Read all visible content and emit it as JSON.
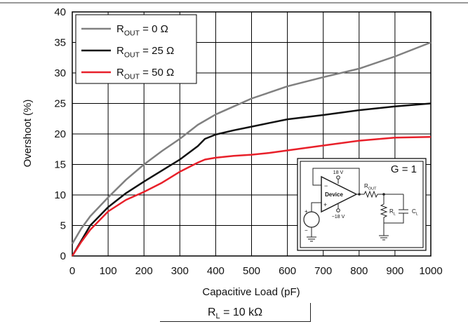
{
  "chart_data": {
    "type": "line",
    "xlabel": "Capacitive Load (pF)",
    "ylabel": "Overshoot (%)",
    "xlim": [
      0,
      1000
    ],
    "ylim": [
      0,
      40
    ],
    "x_ticks": [
      0,
      100,
      200,
      300,
      400,
      500,
      600,
      700,
      800,
      900,
      1000
    ],
    "y_ticks": [
      0,
      5,
      10,
      15,
      20,
      25,
      30,
      35,
      40
    ],
    "grid": true,
    "legend_position": "top-left",
    "series": [
      {
        "name_main": "R",
        "name_sub": "OUT",
        "name_rest": " = 0 Ω",
        "color": "#808080",
        "x": [
          0,
          25,
          50,
          100,
          150,
          200,
          250,
          300,
          350,
          400,
          450,
          500,
          550,
          600,
          700,
          800,
          900,
          1000
        ],
        "y": [
          2,
          4.5,
          6.5,
          9.6,
          12.5,
          15,
          17.2,
          19.2,
          21.5,
          23.2,
          24.5,
          25.8,
          26.8,
          27.8,
          29.3,
          30.7,
          32.7,
          35
        ]
      },
      {
        "name_main": "R",
        "name_sub": "OUT",
        "name_rest": " = 25 Ω",
        "color": "#111111",
        "x": [
          0,
          25,
          50,
          100,
          150,
          200,
          250,
          300,
          350,
          370,
          400,
          450,
          500,
          550,
          600,
          700,
          800,
          900,
          1000
        ],
        "y": [
          0,
          2.5,
          5,
          8,
          10.3,
          12.2,
          14,
          15.8,
          18,
          19.2,
          19.9,
          20.6,
          21.2,
          21.8,
          22.4,
          23.1,
          23.9,
          24.5,
          25
        ]
      },
      {
        "name_main": "R",
        "name_sub": "OUT",
        "name_rest": " = 50 Ω",
        "color": "#e8202a",
        "x": [
          0,
          25,
          50,
          100,
          150,
          200,
          250,
          300,
          350,
          370,
          400,
          450,
          500,
          550,
          600,
          700,
          800,
          900,
          1000
        ],
        "y": [
          0,
          2.3,
          4.3,
          7.3,
          9.2,
          10.5,
          12,
          13.8,
          15.3,
          15.8,
          16.1,
          16.4,
          16.6,
          16.9,
          17.3,
          18.1,
          18.9,
          19.4,
          19.5
        ]
      }
    ],
    "inset": {
      "gain_label": "G = 1",
      "supply_pos": "18 V",
      "supply_neg": "−18 V",
      "device_label": "Device",
      "minus": "−",
      "plus": "+",
      "rout_main": "R",
      "rout_sub": "OUT",
      "rl_main": "R",
      "rl_sub": "L",
      "cl_main": "C",
      "cl_sub": "L"
    },
    "bottom_note_main": "R",
    "bottom_note_sub": "L",
    "bottom_note_rest": " = 10 kΩ"
  }
}
